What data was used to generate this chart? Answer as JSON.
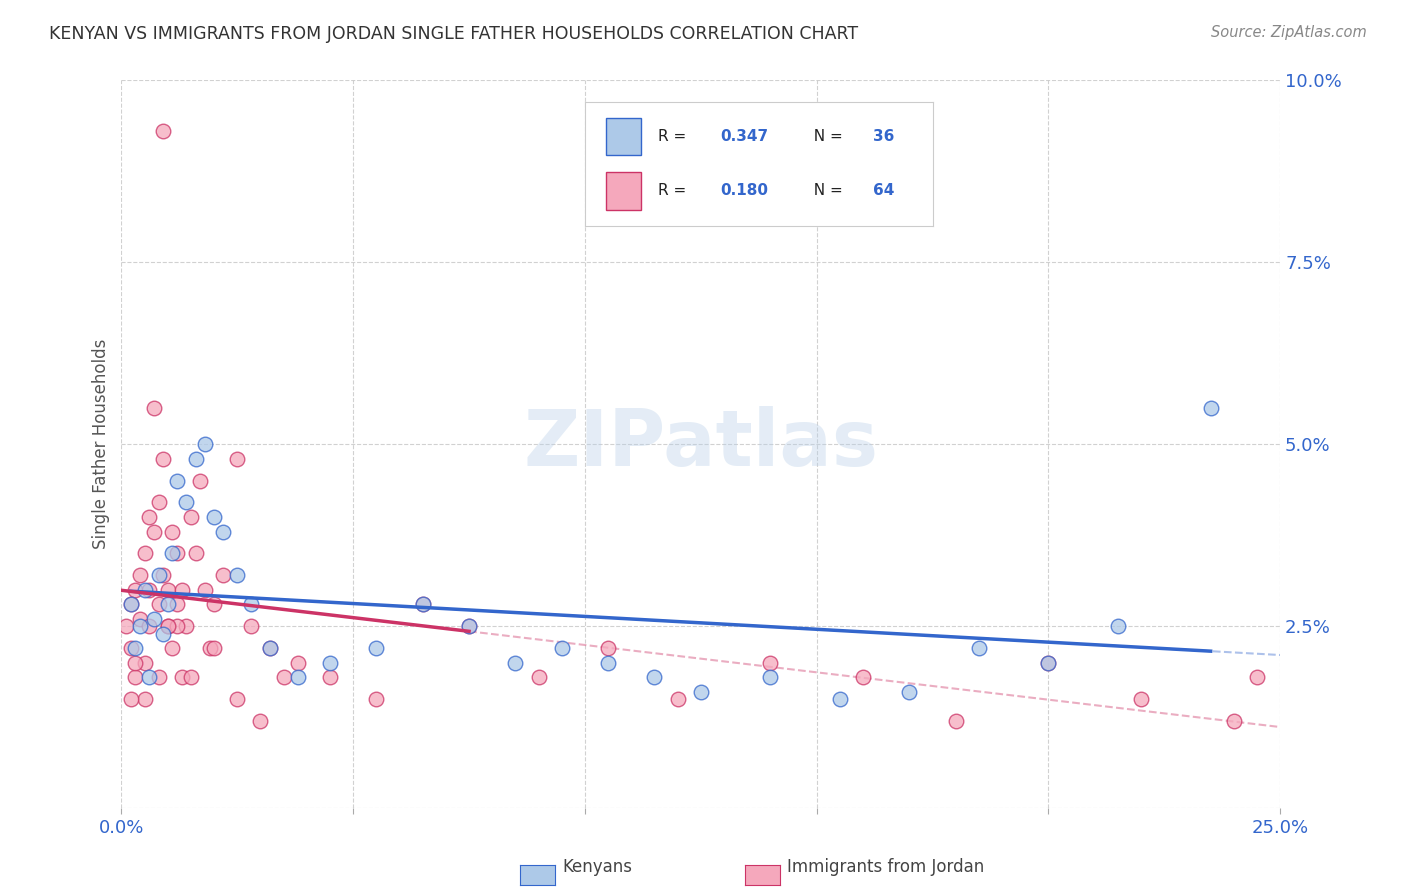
{
  "title": "KENYAN VS IMMIGRANTS FROM JORDAN SINGLE FATHER HOUSEHOLDS CORRELATION CHART",
  "source": "Source: ZipAtlas.com",
  "ylabel": "Single Father Households",
  "xlim": [
    0.0,
    0.25
  ],
  "ylim": [
    0.0,
    0.1
  ],
  "xtick_positions": [
    0.0,
    0.05,
    0.1,
    0.15,
    0.2,
    0.25
  ],
  "ytick_positions": [
    0.0,
    0.025,
    0.05,
    0.075,
    0.1
  ],
  "kenyans_R": 0.347,
  "kenyans_N": 36,
  "jordan_R": 0.18,
  "jordan_N": 64,
  "kenyans_color": "#adc9e8",
  "jordan_color": "#f5a8bc",
  "kenyans_line_color": "#3366cc",
  "jordan_line_color": "#cc3366",
  "watermark": "ZIPatlas",
  "legend_text_color": "#3366cc",
  "title_color": "#333333",
  "source_color": "#888888",
  "ylabel_color": "#555555",
  "grid_color": "#cccccc",
  "tick_label_color": "#3366cc"
}
